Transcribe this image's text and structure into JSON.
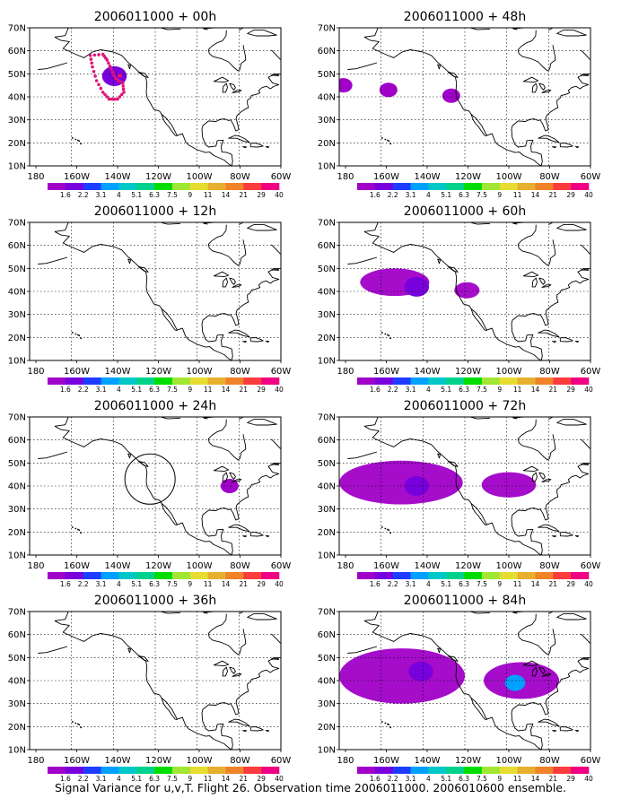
{
  "caption": "Signal Variance for u,v,T. Flight 26. Observation time 2006011000. 2006010600 ensemble.",
  "chart_data": [
    {
      "type": "heatmap",
      "title": "2006011000 + 00h",
      "xlim": [
        "180",
        "60W"
      ],
      "ylim": [
        "10N",
        "70N"
      ],
      "features": [
        {
          "kind": "flight-track",
          "color": "#e0147a"
        },
        {
          "kind": "blob",
          "lon": -139.5,
          "lat": 49,
          "level": 2
        }
      ]
    },
    {
      "type": "heatmap",
      "title": "2006011000 + 12h",
      "xlim": [
        "180",
        "60W"
      ],
      "ylim": [
        "10N",
        "70N"
      ],
      "features": []
    },
    {
      "type": "heatmap",
      "title": "2006011000 + 24h",
      "xlim": [
        "180",
        "60W"
      ],
      "ylim": [
        "10N",
        "70N"
      ],
      "features": [
        {
          "kind": "circle",
          "lon": -122.5,
          "lat": 43
        },
        {
          "kind": "blob",
          "lon": -84.5,
          "lat": 40,
          "level": 1
        }
      ]
    },
    {
      "type": "heatmap",
      "title": "2006011000 + 36h",
      "xlim": [
        "180",
        "60W"
      ],
      "ylim": [
        "10N",
        "70N"
      ],
      "features": []
    },
    {
      "type": "heatmap",
      "title": "2006011000 + 48h",
      "xlim": [
        "180",
        "60W"
      ],
      "ylim": [
        "10N",
        "70N"
      ],
      "features": [
        {
          "kind": "blob",
          "lon": -178,
          "lat": 45,
          "level": 1
        },
        {
          "kind": "blob",
          "lon": -156.5,
          "lat": 43,
          "level": 1
        },
        {
          "kind": "blob",
          "lon": -126.5,
          "lat": 40.5,
          "level": 1
        }
      ]
    },
    {
      "type": "heatmap",
      "title": "2006011000 + 60h",
      "xlim": [
        "180",
        "60W"
      ],
      "ylim": [
        "10N",
        "70N"
      ],
      "features": [
        {
          "kind": "region",
          "lon": [
            -170,
            -137
          ],
          "lat": [
            38,
            50
          ],
          "level": 1
        },
        {
          "kind": "region",
          "lon": [
            -125,
            -113
          ],
          "lat": [
            37,
            44
          ],
          "level": 1
        },
        {
          "kind": "blob",
          "lon": -143,
          "lat": 42,
          "level": 2
        }
      ]
    },
    {
      "type": "heatmap",
      "title": "2006011000 + 72h",
      "xlim": [
        "180",
        "60W"
      ],
      "ylim": [
        "10N",
        "70N"
      ],
      "features": [
        {
          "kind": "region",
          "lon": [
            -180,
            -121
          ],
          "lat": [
            32,
            51
          ],
          "level": 1
        },
        {
          "kind": "region",
          "lon": [
            -112,
            -86
          ],
          "lat": [
            35,
            46
          ],
          "level": 1
        },
        {
          "kind": "blob",
          "lon": -143,
          "lat": 40,
          "level": 2
        }
      ]
    },
    {
      "type": "heatmap",
      "title": "2006011000 + 84h",
      "xlim": [
        "180",
        "60W"
      ],
      "ylim": [
        "10N",
        "70N"
      ],
      "features": [
        {
          "kind": "region",
          "lon": [
            -180,
            -120
          ],
          "lat": [
            30,
            54
          ],
          "level": 1
        },
        {
          "kind": "region",
          "lon": [
            -111,
            -75
          ],
          "lat": [
            32,
            48
          ],
          "level": 1
        },
        {
          "kind": "blob",
          "lon": -141,
          "lat": 44,
          "level": 2
        },
        {
          "kind": "blob",
          "lon": -96,
          "lat": 39,
          "level": 4
        }
      ]
    }
  ],
  "axis": {
    "yticks": [
      "70N",
      "60N",
      "50N",
      "40N",
      "30N",
      "20N",
      "10N"
    ],
    "xticks": [
      "180",
      "160W",
      "140W",
      "120W",
      "100W",
      "80W",
      "60W"
    ]
  },
  "colorbar": {
    "labels": [
      "1.6",
      "2.2",
      "3.1",
      "4",
      "5.1",
      "6.3",
      "7.5",
      "9",
      "11",
      "14",
      "21",
      "29",
      "40"
    ],
    "colors": [
      "#a000c8",
      "#7800dc",
      "#1e3cff",
      "#00a0ff",
      "#00c8c8",
      "#00d28c",
      "#00dc00",
      "#a0e632",
      "#e6dc32",
      "#e6af2d",
      "#f08228",
      "#fa3c3c",
      "#f00082"
    ]
  }
}
